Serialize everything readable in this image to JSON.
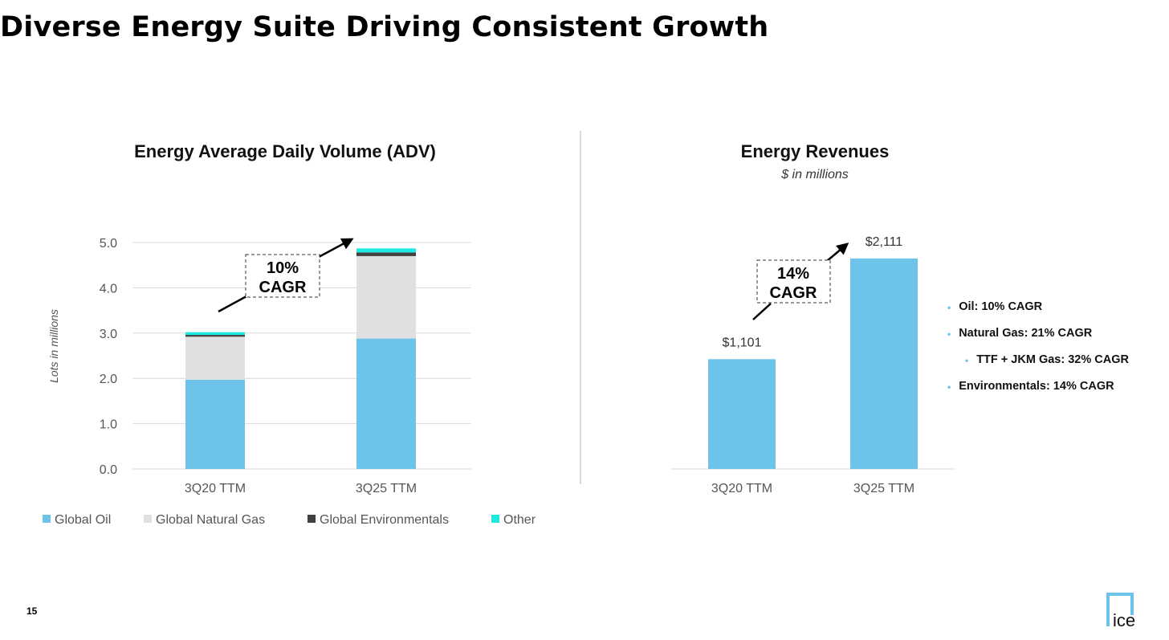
{
  "page_title": "Diverse Energy Suite Driving Consistent Growth",
  "page_number": "15",
  "logo_text": "ice",
  "colors": {
    "oil": "#6ec3e8",
    "gas": "#e0e0e0",
    "env": "#404040",
    "other": "#1de9e0",
    "revenue": "#6ec3e8"
  },
  "chart_data": [
    {
      "type": "bar",
      "stacked": true,
      "title": "Energy Average Daily Volume (ADV)",
      "ylabel": "Lots in millions",
      "xlabel": "",
      "ylim": [
        0,
        5.0
      ],
      "yticks": [
        "0.0",
        "1.0",
        "2.0",
        "3.0",
        "4.0",
        "5.0"
      ],
      "categories": [
        "3Q20 TTM",
        "3Q25 TTM"
      ],
      "series": [
        {
          "name": "Global Oil",
          "values": [
            1.97,
            2.88
          ]
        },
        {
          "name": "Global Natural Gas",
          "values": [
            0.95,
            1.82
          ]
        },
        {
          "name": "Global Environmentals",
          "values": [
            0.04,
            0.08
          ]
        },
        {
          "name": "Other",
          "values": [
            0.06,
            0.09
          ]
        }
      ],
      "legend": "bottom",
      "grid": true,
      "annotation": {
        "line1": "10%",
        "line2": "CAGR"
      }
    },
    {
      "type": "bar",
      "title": "Energy Revenues",
      "subtitle": "$ in millions",
      "categories": [
        "3Q20 TTM",
        "3Q25 TTM"
      ],
      "values": [
        1101,
        2111
      ],
      "data_labels": [
        "$1,101",
        "$2,111"
      ],
      "ylim": [
        0,
        2400
      ],
      "grid": false,
      "annotation": {
        "line1": "14%",
        "line2": "CAGR"
      }
    }
  ],
  "revenue_notes": [
    {
      "text": "Oil: 10% CAGR",
      "indent": false
    },
    {
      "text": "Natural Gas: 21% CAGR",
      "indent": false
    },
    {
      "text": "TTF + JKM Gas: 32% CAGR",
      "indent": true
    },
    {
      "text": "Environmentals: 14% CAGR",
      "indent": false
    }
  ]
}
